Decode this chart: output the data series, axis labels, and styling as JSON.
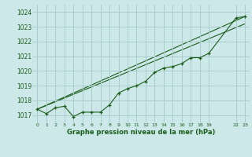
{
  "background_color": "#cce8e8",
  "plot_bg_color": "#cce8e8",
  "grid_color": "#aacccc",
  "line_color": "#1a5c1a",
  "title": "Graphe pression niveau de la mer (hPa)",
  "ylim": [
    1016.5,
    1024.5
  ],
  "yticks": [
    1017,
    1018,
    1019,
    1020,
    1021,
    1022,
    1023,
    1024
  ],
  "xticks": [
    0,
    1,
    2,
    3,
    4,
    5,
    6,
    7,
    8,
    9,
    10,
    11,
    12,
    13,
    14,
    15,
    16,
    17,
    18,
    19,
    22,
    23
  ],
  "xlim": [
    -0.5,
    23.5
  ],
  "series1_x": [
    0,
    1,
    2,
    3,
    4,
    5,
    6,
    7,
    8,
    9,
    10,
    11,
    12,
    13,
    14,
    15,
    16,
    17,
    18,
    19,
    22,
    23
  ],
  "series1_y": [
    1017.4,
    1017.1,
    1017.5,
    1017.6,
    1016.9,
    1017.2,
    1017.2,
    1017.2,
    1017.7,
    1018.5,
    1018.8,
    1019.0,
    1019.3,
    1019.9,
    1020.2,
    1020.3,
    1020.5,
    1020.9,
    1020.9,
    1021.2,
    1023.6,
    1023.7
  ],
  "series2_x": [
    0,
    23
  ],
  "series2_y": [
    1017.4,
    1023.7
  ],
  "series3_x": [
    0,
    23
  ],
  "series3_y": [
    1017.4,
    1023.2
  ]
}
